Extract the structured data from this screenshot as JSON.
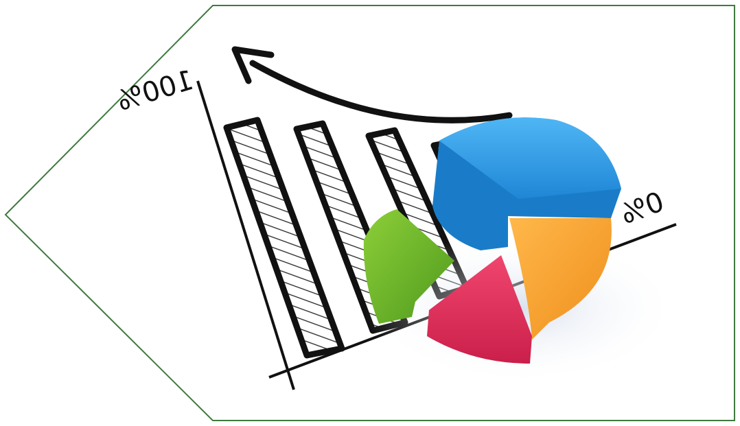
{
  "labels": {
    "top": "100%",
    "bottom": "0%"
  }
}
